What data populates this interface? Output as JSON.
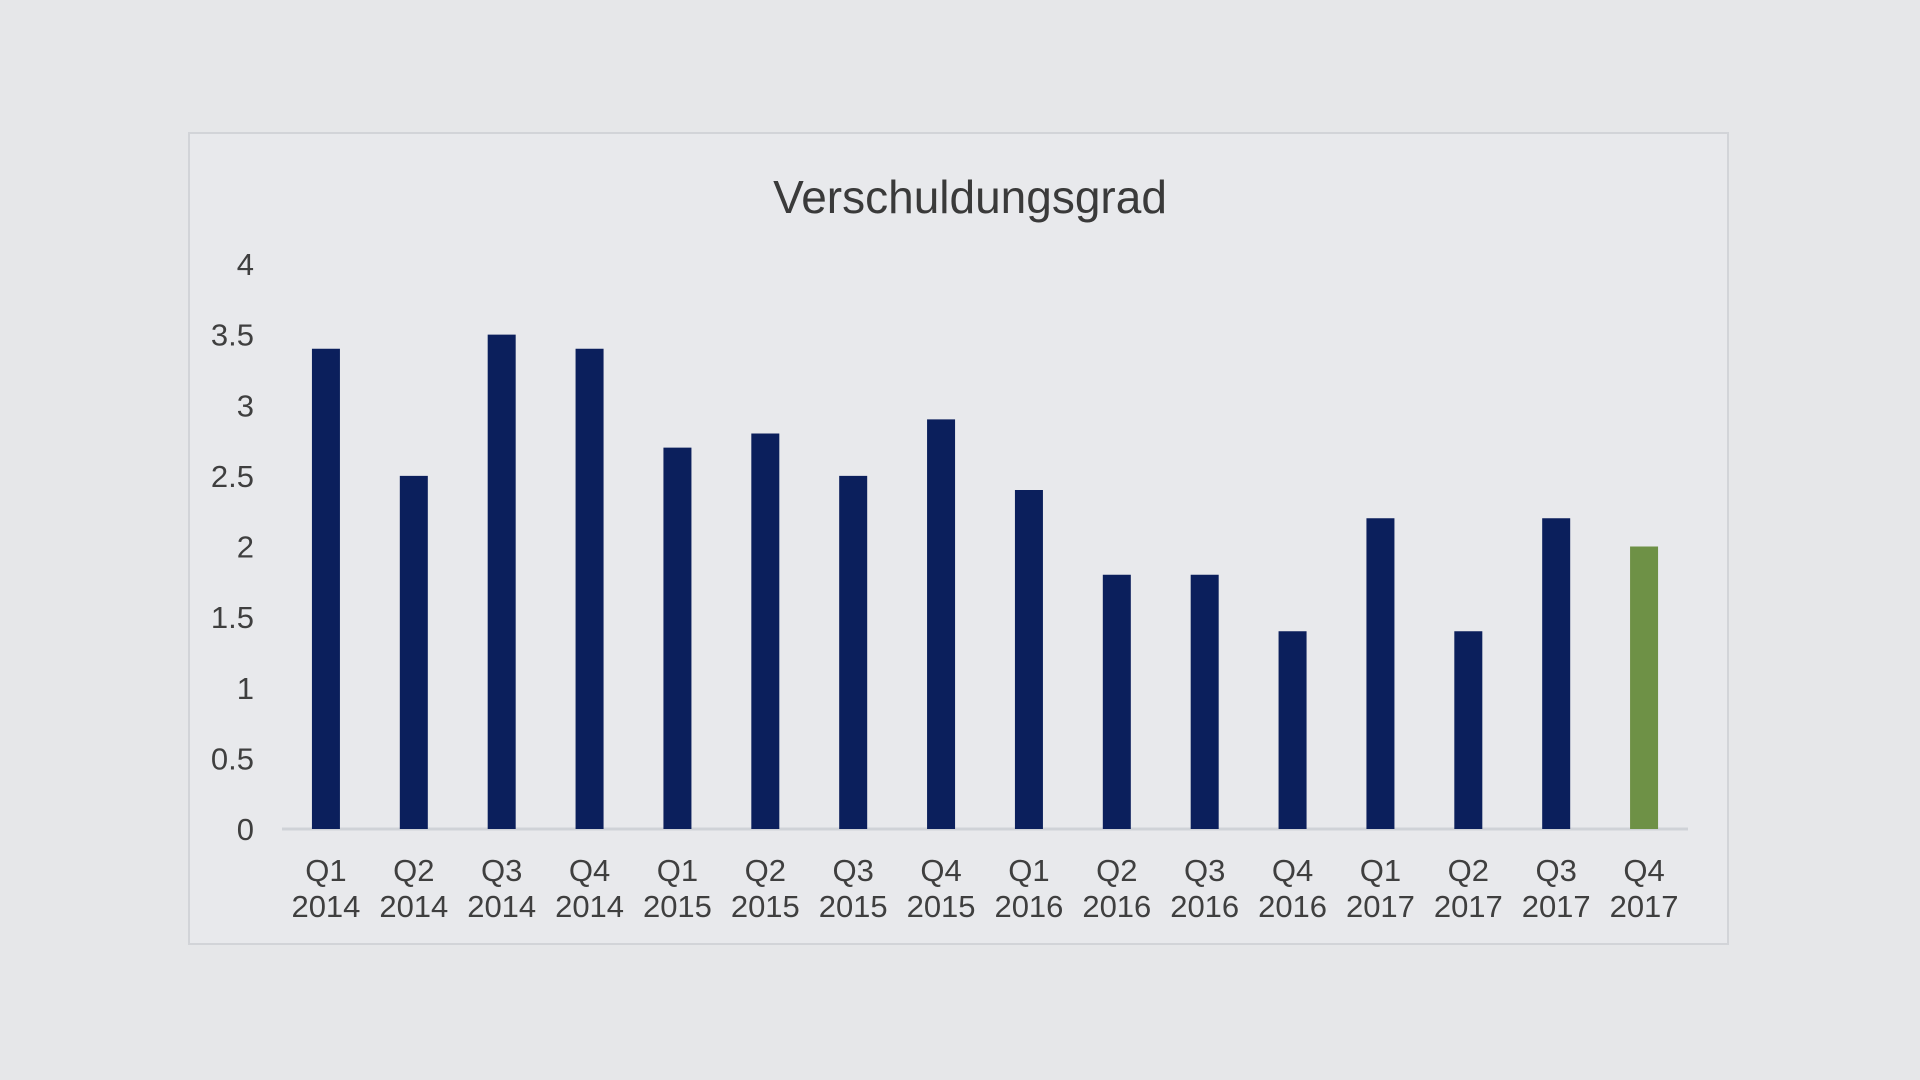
{
  "chart_data": {
    "type": "bar",
    "title": "Verschuldungsgrad",
    "xlabel": "",
    "ylabel": "",
    "ylim": [
      0,
      4
    ],
    "yticks": [
      "0",
      "0.5",
      "1",
      "1.5",
      "2",
      "2.5",
      "3",
      "3.5",
      "4"
    ],
    "grid": false,
    "categories": [
      [
        "Q1",
        "2014"
      ],
      [
        "Q2",
        "2014"
      ],
      [
        "Q3",
        "2014"
      ],
      [
        "Q4",
        "2014"
      ],
      [
        "Q1",
        "2015"
      ],
      [
        "Q2",
        "2015"
      ],
      [
        "Q3",
        "2015"
      ],
      [
        "Q4",
        "2015"
      ],
      [
        "Q1",
        "2016"
      ],
      [
        "Q2",
        "2016"
      ],
      [
        "Q3",
        "2016"
      ],
      [
        "Q4",
        "2016"
      ],
      [
        "Q1",
        "2017"
      ],
      [
        "Q2",
        "2017"
      ],
      [
        "Q3",
        "2017"
      ],
      [
        "Q4",
        "2017"
      ]
    ],
    "values": [
      3.4,
      2.5,
      3.5,
      3.4,
      2.7,
      2.8,
      2.5,
      2.9,
      2.4,
      1.8,
      1.8,
      1.4,
      2.2,
      1.4,
      2.2,
      2.0
    ],
    "colors": {
      "bar": "#0b1f5c",
      "highlight": "#6e9146",
      "axis": "#cfd2d7"
    },
    "highlight_index": 15
  }
}
